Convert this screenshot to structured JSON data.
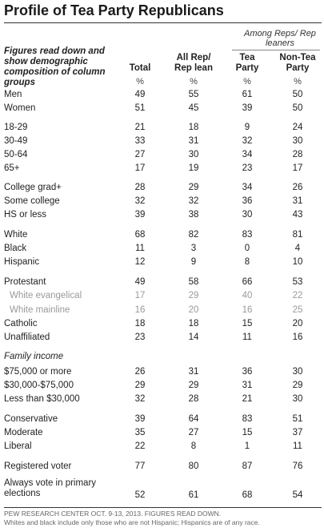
{
  "title": "Profile of Tea Party Republicans",
  "intro": "Figures read down and show demographic composition of column groups",
  "among_label": "Among Reps/ Rep leaners",
  "columns": [
    {
      "label": "Total",
      "unit": "%"
    },
    {
      "label": "All Rep/ Rep lean",
      "unit": "%"
    },
    {
      "label": "Tea Party",
      "unit": "%"
    },
    {
      "label": "Non-Tea Party",
      "unit": "%"
    }
  ],
  "rows": [
    {
      "label": "Men",
      "values": [
        "49",
        "55",
        "61",
        "50"
      ]
    },
    {
      "label": "Women",
      "values": [
        "51",
        "45",
        "39",
        "50"
      ]
    },
    {
      "label": "18-29",
      "values": [
        "21",
        "18",
        "9",
        "24"
      ]
    },
    {
      "label": "30-49",
      "values": [
        "33",
        "31",
        "32",
        "30"
      ]
    },
    {
      "label": "50-64",
      "values": [
        "27",
        "30",
        "34",
        "28"
      ]
    },
    {
      "label": "65+",
      "values": [
        "17",
        "19",
        "23",
        "17"
      ]
    },
    {
      "label": "College grad+",
      "values": [
        "28",
        "29",
        "34",
        "26"
      ]
    },
    {
      "label": "Some college",
      "values": [
        "32",
        "32",
        "36",
        "31"
      ]
    },
    {
      "label": "HS or less",
      "values": [
        "39",
        "38",
        "30",
        "43"
      ]
    },
    {
      "label": "White",
      "values": [
        "68",
        "82",
        "83",
        "81"
      ]
    },
    {
      "label": "Black",
      "values": [
        "11",
        "3",
        "0",
        "4"
      ]
    },
    {
      "label": "Hispanic",
      "values": [
        "12",
        "9",
        "8",
        "10"
      ]
    },
    {
      "label": "Protestant",
      "values": [
        "49",
        "58",
        "66",
        "53"
      ]
    },
    {
      "label": "White evangelical",
      "values": [
        "17",
        "29",
        "40",
        "22"
      ]
    },
    {
      "label": "White mainline",
      "values": [
        "16",
        "20",
        "16",
        "25"
      ]
    },
    {
      "label": "Catholic",
      "values": [
        "18",
        "18",
        "15",
        "20"
      ]
    },
    {
      "label": "Unaffiliated",
      "values": [
        "23",
        "14",
        "11",
        "16"
      ]
    },
    {
      "label": "Family income",
      "values": []
    },
    {
      "label": "$75,000 or more",
      "values": [
        "26",
        "31",
        "36",
        "30"
      ]
    },
    {
      "label": "$30,000-$75,000",
      "values": [
        "29",
        "29",
        "31",
        "29"
      ]
    },
    {
      "label": "Less than $30,000",
      "values": [
        "32",
        "28",
        "21",
        "30"
      ]
    },
    {
      "label": "Conservative",
      "values": [
        "39",
        "64",
        "83",
        "51"
      ]
    },
    {
      "label": "Moderate",
      "values": [
        "35",
        "27",
        "15",
        "37"
      ]
    },
    {
      "label": "Liberal",
      "values": [
        "22",
        "8",
        "1",
        "11"
      ]
    },
    {
      "label": "Registered voter",
      "values": [
        "77",
        "80",
        "87",
        "76"
      ]
    },
    {
      "label": "Always vote in primary elections",
      "values": [
        "52",
        "61",
        "68",
        "54"
      ]
    }
  ],
  "footer": {
    "source": "Pew Research Center Oct. 9-13, 2013. Figures read down.",
    "note": "Whites and black include only those who are not Hispanic; Hispanics are of any race."
  }
}
